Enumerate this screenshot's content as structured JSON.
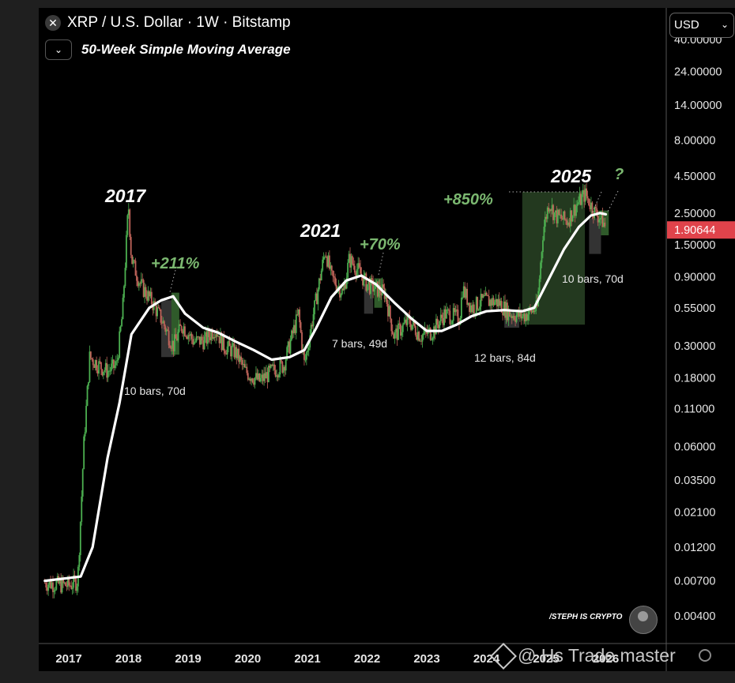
{
  "header": {
    "title": "XRP / U.S. Dollar · 1W · Bitstamp",
    "indicator": "50-Week Simple Moving Average",
    "close_icon": "close-icon",
    "toggle_icon": "chevron-down-icon"
  },
  "currency_selector": {
    "value": "USD",
    "icon": "chevron-down-icon"
  },
  "watermark": {
    "text": "@ Hs Trade master",
    "icon": "binance-logo-icon"
  },
  "author": "/STEPH IS CRYPTO",
  "colors": {
    "background": "#000000",
    "up": "#4caf50",
    "down": "#c0645a",
    "sma": "#ffffff",
    "green_annotation": "#7bb870",
    "price_badge": "#e0434b",
    "highlight_zone": "#23391f"
  },
  "chart_data": {
    "type": "candlestick",
    "y_scale": "log",
    "x_ticks": [
      "2017",
      "2018",
      "2019",
      "2020",
      "2021",
      "2022",
      "2023",
      "2024",
      "2025",
      "2026"
    ],
    "y_ticks": [
      40,
      24,
      14,
      8,
      4.5,
      2.5,
      1.5,
      0.9,
      0.55,
      0.3,
      0.18,
      0.11,
      0.06,
      0.035,
      0.021,
      0.012,
      0.007,
      0.004
    ],
    "y_tick_labels": [
      "40.00000",
      "24.00000",
      "14.00000",
      "8.00000",
      "4.50000",
      "2.50000",
      "1.50000",
      "0.90000",
      "0.55000",
      "0.30000",
      "0.18000",
      "0.11000",
      "0.06000",
      "0.03500",
      "0.02100",
      "0.01200",
      "0.00700",
      "0.00400"
    ],
    "current_price": {
      "value": 1.90644,
      "label": "1.90644"
    },
    "price_path": [
      [
        2016.6,
        0.0068
      ],
      [
        2017.0,
        0.0065
      ],
      [
        2017.15,
        0.007
      ],
      [
        2017.22,
        0.03
      ],
      [
        2017.25,
        0.06
      ],
      [
        2017.35,
        0.25
      ],
      [
        2017.5,
        0.22
      ],
      [
        2017.65,
        0.2
      ],
      [
        2017.8,
        0.22
      ],
      [
        2017.9,
        0.5
      ],
      [
        2018.0,
        2.9
      ],
      [
        2018.05,
        1.2
      ],
      [
        2018.2,
        0.8
      ],
      [
        2018.4,
        0.6
      ],
      [
        2018.55,
        0.46
      ],
      [
        2018.75,
        0.3
      ],
      [
        2018.9,
        0.42
      ],
      [
        2019.1,
        0.32
      ],
      [
        2019.3,
        0.33
      ],
      [
        2019.45,
        0.4
      ],
      [
        2019.6,
        0.3
      ],
      [
        2019.8,
        0.27
      ],
      [
        2019.95,
        0.2
      ],
      [
        2020.2,
        0.17
      ],
      [
        2020.4,
        0.2
      ],
      [
        2020.6,
        0.22
      ],
      [
        2020.85,
        0.5
      ],
      [
        2020.95,
        0.22
      ],
      [
        2021.1,
        0.5
      ],
      [
        2021.3,
        1.4
      ],
      [
        2021.4,
        0.9
      ],
      [
        2021.6,
        0.7
      ],
      [
        2021.7,
        1.2
      ],
      [
        2021.85,
        1.0
      ],
      [
        2022.0,
        0.8
      ],
      [
        2022.3,
        0.7
      ],
      [
        2022.45,
        0.35
      ],
      [
        2022.7,
        0.45
      ],
      [
        2022.9,
        0.35
      ],
      [
        2023.1,
        0.38
      ],
      [
        2023.3,
        0.5
      ],
      [
        2023.55,
        0.47
      ],
      [
        2023.6,
        0.75
      ],
      [
        2023.75,
        0.55
      ],
      [
        2023.95,
        0.62
      ],
      [
        2024.2,
        0.6
      ],
      [
        2024.4,
        0.5
      ],
      [
        2024.6,
        0.48
      ],
      [
        2024.85,
        0.55
      ],
      [
        2024.95,
        1.9
      ],
      [
        2025.05,
        3.0
      ],
      [
        2025.15,
        2.4
      ],
      [
        2025.35,
        2.2
      ],
      [
        2025.5,
        2.8
      ],
      [
        2025.65,
        3.4
      ],
      [
        2025.8,
        2.6
      ],
      [
        2025.95,
        2.2
      ],
      [
        2026.0,
        1.95
      ]
    ],
    "sma_50w": [
      [
        2016.6,
        0.007
      ],
      [
        2017.2,
        0.0075
      ],
      [
        2017.4,
        0.012
      ],
      [
        2017.65,
        0.05
      ],
      [
        2017.85,
        0.12
      ],
      [
        2018.05,
        0.36
      ],
      [
        2018.35,
        0.55
      ],
      [
        2018.55,
        0.62
      ],
      [
        2018.75,
        0.66
      ],
      [
        2018.95,
        0.5
      ],
      [
        2019.25,
        0.4
      ],
      [
        2019.5,
        0.37
      ],
      [
        2019.8,
        0.32
      ],
      [
        2020.1,
        0.28
      ],
      [
        2020.4,
        0.24
      ],
      [
        2020.7,
        0.25
      ],
      [
        2020.95,
        0.28
      ],
      [
        2021.15,
        0.4
      ],
      [
        2021.4,
        0.65
      ],
      [
        2021.65,
        0.85
      ],
      [
        2021.9,
        0.92
      ],
      [
        2022.15,
        0.8
      ],
      [
        2022.45,
        0.6
      ],
      [
        2022.75,
        0.46
      ],
      [
        2023.0,
        0.38
      ],
      [
        2023.25,
        0.38
      ],
      [
        2023.5,
        0.42
      ],
      [
        2023.75,
        0.48
      ],
      [
        2024.0,
        0.52
      ],
      [
        2024.3,
        0.53
      ],
      [
        2024.6,
        0.52
      ],
      [
        2024.8,
        0.55
      ],
      [
        2025.0,
        0.8
      ],
      [
        2025.3,
        1.4
      ],
      [
        2025.55,
        2.0
      ],
      [
        2025.75,
        2.4
      ],
      [
        2025.9,
        2.5
      ],
      [
        2026.0,
        2.45
      ]
    ],
    "annotations": [
      {
        "text": "2017",
        "style": "year"
      },
      {
        "text": "2021",
        "style": "year"
      },
      {
        "text": "2025",
        "style": "year"
      },
      {
        "text": "+211%",
        "style": "gain"
      },
      {
        "text": "+70%",
        "style": "gain"
      },
      {
        "text": "+850%",
        "style": "gain"
      },
      {
        "text": "?",
        "style": "gain"
      },
      {
        "text": "10 bars, 70d",
        "style": "note"
      },
      {
        "text": "7 bars, 49d",
        "style": "note"
      },
      {
        "text": "12 bars, 84d",
        "style": "note"
      },
      {
        "text": "10 bars, 70d",
        "style": "note"
      }
    ]
  }
}
